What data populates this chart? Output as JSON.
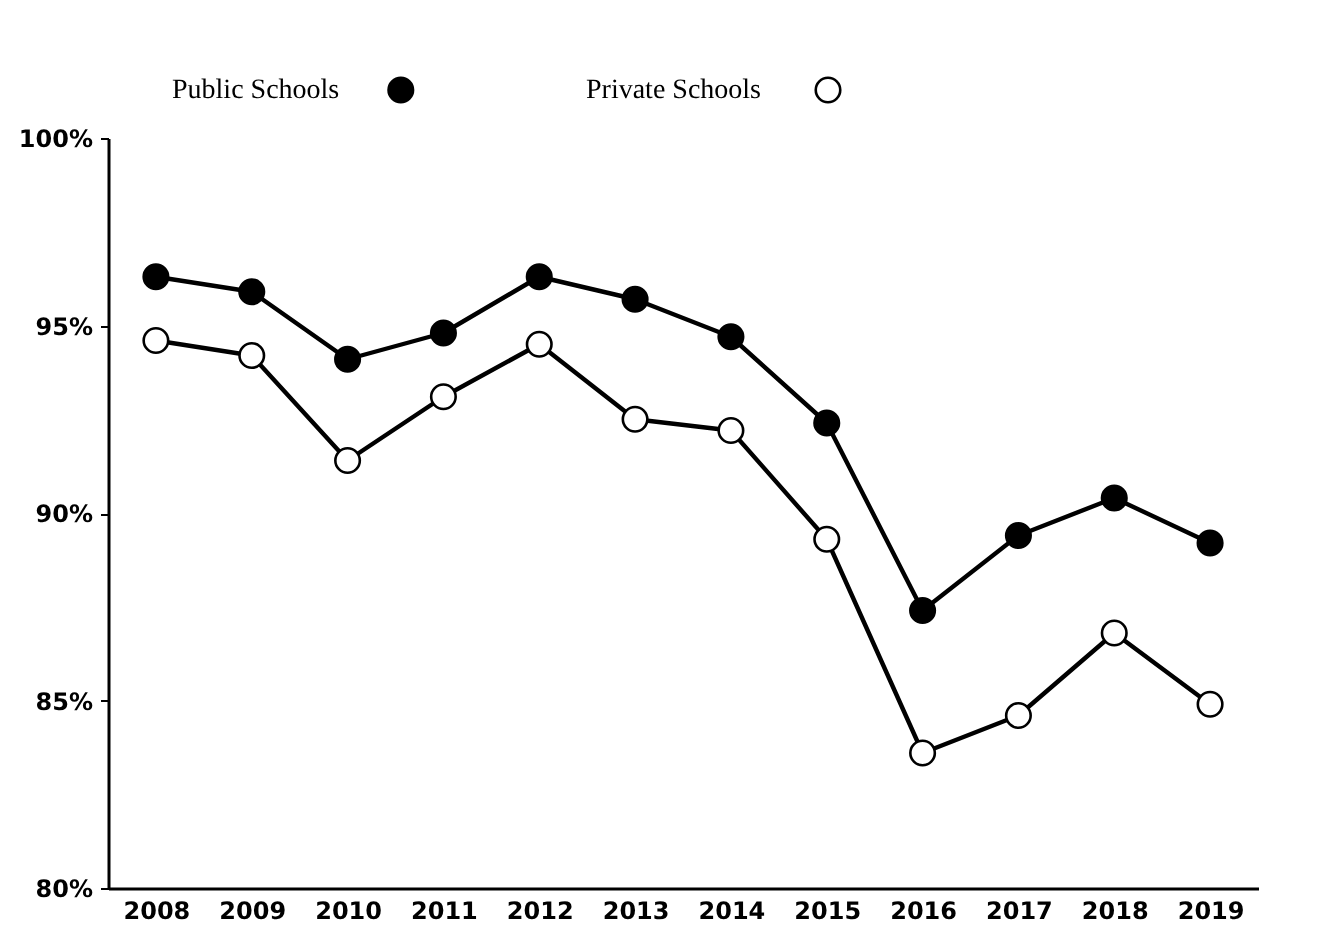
{
  "chart_data": {
    "type": "line",
    "categories": [
      "2008",
      "2009",
      "2010",
      "2011",
      "2012",
      "2013",
      "2014",
      "2015",
      "2016",
      "2017",
      "2018",
      "2019"
    ],
    "series": [
      {
        "name": "Public Schools",
        "color": "#000000",
        "values": [
          96.3,
          95.9,
          94.1,
          94.8,
          96.3,
          95.7,
          94.7,
          92.4,
          87.4,
          89.4,
          90.4,
          89.2
        ]
      },
      {
        "name": "Private Schools",
        "color": "#000000",
        "values": [
          94.6,
          94.2,
          91.4,
          93.1,
          94.5,
          92.5,
          92.2,
          89.3,
          83.6,
          84.6,
          86.8,
          84.9
        ]
      }
    ],
    "ylim": [
      80,
      100
    ],
    "yticks": [
      {
        "value": 80,
        "label": "80%"
      },
      {
        "value": 85,
        "label": "85%"
      },
      {
        "value": 90,
        "label": "90%"
      },
      {
        "value": 95,
        "label": "95%"
      },
      {
        "value": 100,
        "label": "100%"
      }
    ],
    "grid": false,
    "legend": "top left",
    "marker": "circle",
    "line_style": "solid"
  }
}
